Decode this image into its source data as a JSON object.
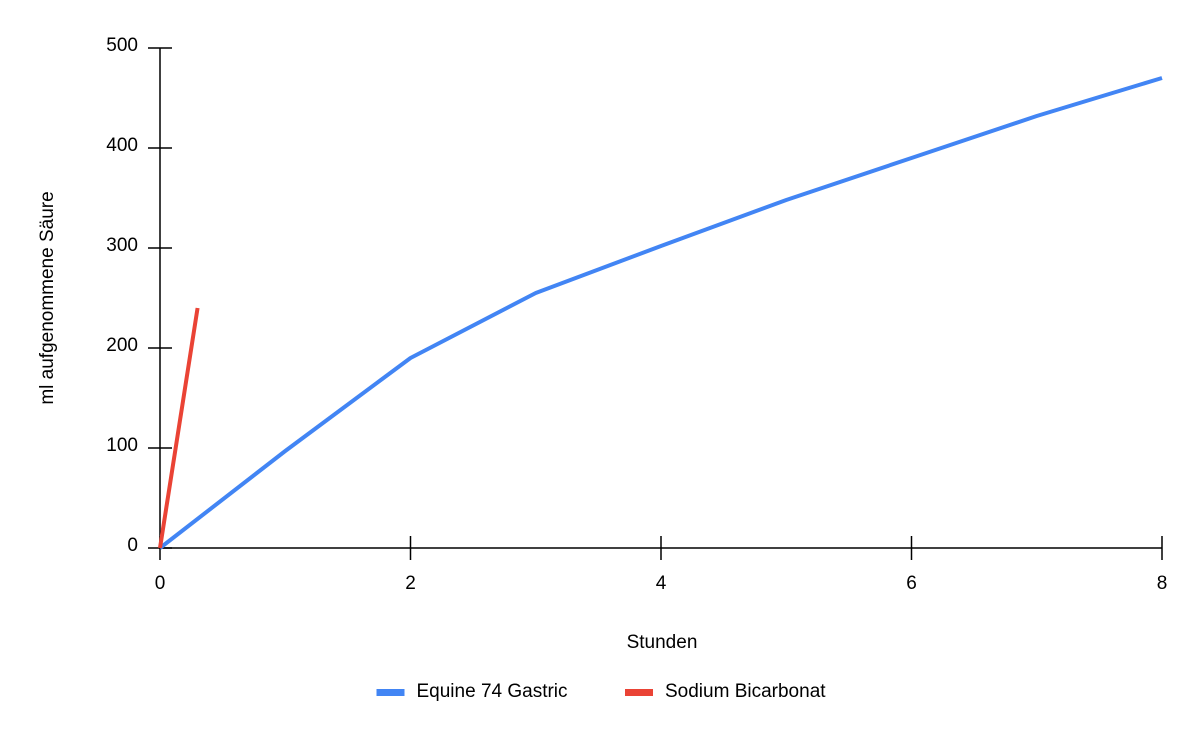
{
  "chart_data": {
    "type": "line",
    "x_label": "Stunden",
    "y_label": "ml aufgenommene Säure",
    "series": [
      {
        "name": "Equine 74 Gastric",
        "color": "#4285f4",
        "x": [
          0,
          1,
          2,
          3,
          4,
          5,
          6,
          7,
          8
        ],
        "values": [
          0,
          97,
          190,
          255,
          302,
          348,
          390,
          432,
          470
        ]
      },
      {
        "name": "Sodium Bicarbonat",
        "color": "#ea4335",
        "x": [
          0,
          0.3
        ],
        "values": [
          0,
          240
        ]
      }
    ],
    "xlim": [
      0,
      8
    ],
    "xticks": [
      0,
      2,
      4,
      6,
      8
    ],
    "ylim": [
      0,
      500
    ],
    "yticks": [
      0,
      100,
      200,
      300,
      400,
      500
    ],
    "grid": false,
    "legend": "bottom"
  }
}
